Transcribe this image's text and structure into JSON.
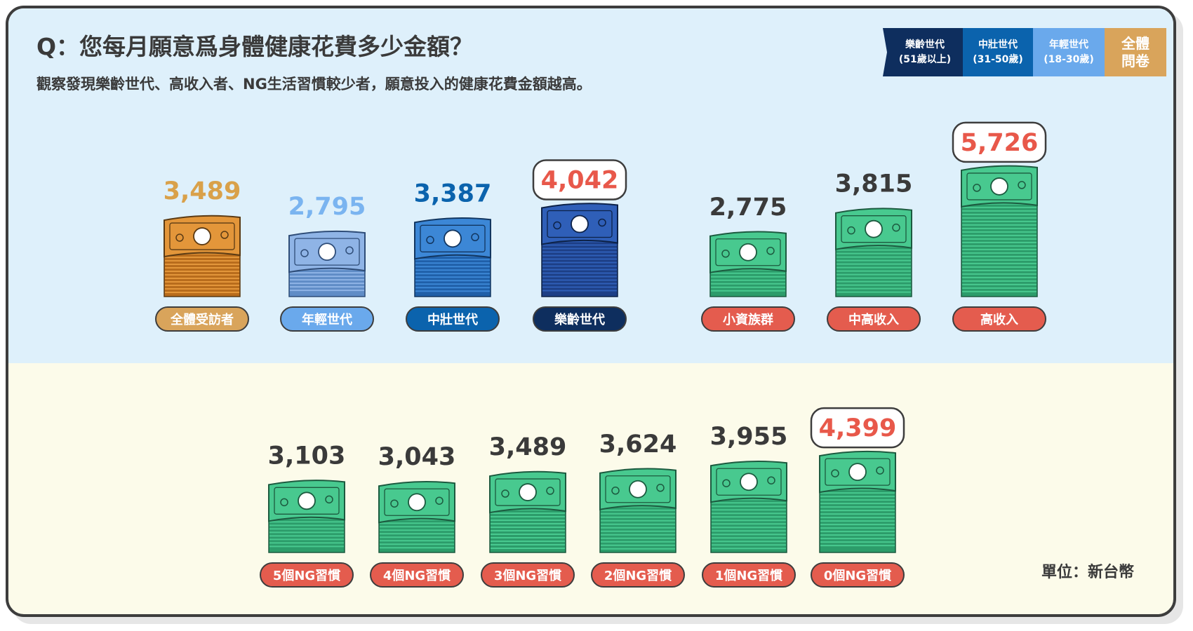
{
  "header": {
    "question": "Q：您每月願意爲身體健康花費多少金額？",
    "subtitle": "觀察發現樂齡世代、高收入者、NG生活習慣較少者，願意投入的健康花費金額越高。"
  },
  "legend": {
    "items": [
      {
        "line1": "樂齡世代",
        "line2": "(51歲以上)",
        "color": "#0e2e5e"
      },
      {
        "line1": "中壯世代",
        "line2": "(31-50歲)",
        "color": "#0b63ad"
      },
      {
        "line1": "年輕世代",
        "line2": "(18-30歲)",
        "color": "#6aa9ec"
      },
      {
        "line1": "全體",
        "line2": "問卷",
        "color": "#d9a45b"
      }
    ]
  },
  "unit": "單位：新台幣",
  "colors": {
    "top_background": "#def0fb",
    "bottom_background": "#fcfbea",
    "highlight": "#e8584a",
    "money_green": "#3fbf8a",
    "label_red": "#e45c4e"
  },
  "chart_data": [
    {
      "type": "bar",
      "categories": [
        "全體受訪者",
        "年輕世代",
        "中壯世代",
        "樂齡世代",
        "小資族群",
        "中高收入",
        "高收入"
      ],
      "values": [
        3489,
        2795,
        3387,
        4042,
        2775,
        3815,
        5726
      ],
      "value_labels": [
        "3,489",
        "2,795",
        "3,387",
        "4,042",
        "2,775",
        "3,815",
        "5,726"
      ],
      "highlighted": [
        "樂齡世代",
        "高收入"
      ],
      "title": "",
      "xlabel": "",
      "ylabel": ""
    },
    {
      "type": "bar",
      "categories": [
        "5個NG習慣",
        "4個NG習慣",
        "3個NG習慣",
        "2個NG習慣",
        "1個NG習慣",
        "0個NG習慣"
      ],
      "values": [
        3103,
        3043,
        3489,
        3624,
        3955,
        4399
      ],
      "value_labels": [
        "3,103",
        "3,043",
        "3,489",
        "3,624",
        "3,955",
        "4,399"
      ],
      "highlighted": [
        "0個NG習慣"
      ],
      "title": "",
      "xlabel": "",
      "ylabel": ""
    }
  ]
}
